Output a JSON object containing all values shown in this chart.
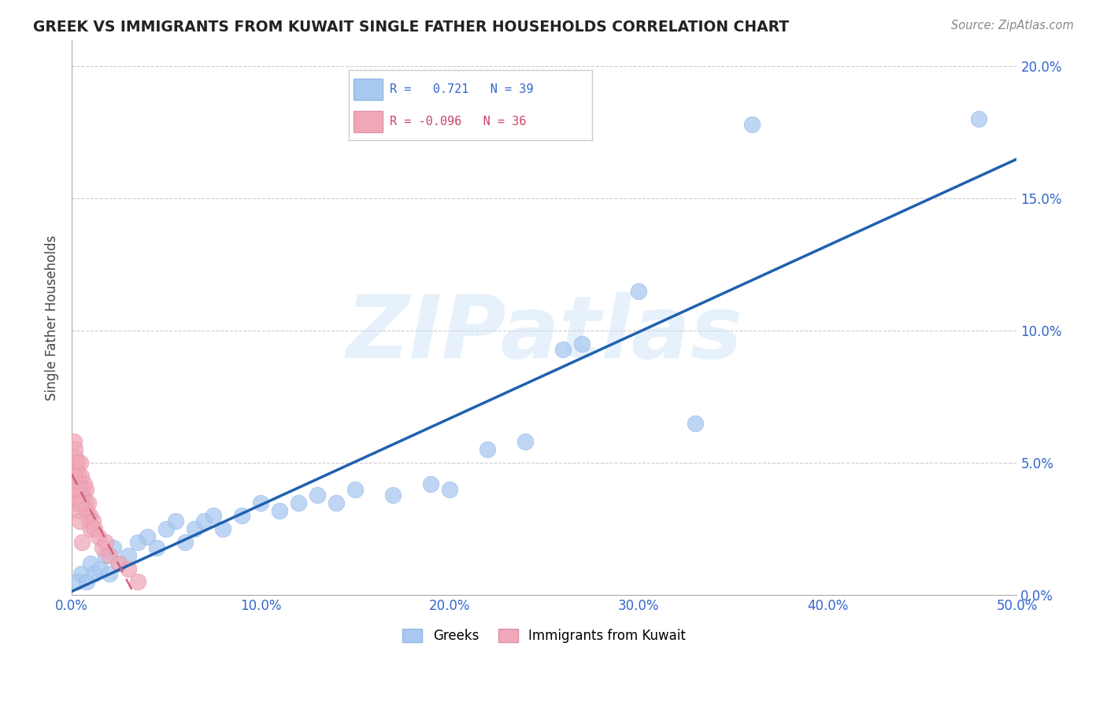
{
  "title": "GREEK VS IMMIGRANTS FROM KUWAIT SINGLE FATHER HOUSEHOLDS CORRELATION CHART",
  "source": "Source: ZipAtlas.com",
  "ylabel_label": "Single Father Households",
  "legend_label1": "Greeks",
  "legend_label2": "Immigrants from Kuwait",
  "greek_color": "#a8c8f0",
  "kuwait_color": "#f0a8b8",
  "greek_line_color": "#2060b0",
  "kuwait_line_color": "#d06080",
  "watermark_text": "ZIPatlas",
  "greek_points": [
    [
      0.3,
      0.5
    ],
    [
      0.5,
      0.8
    ],
    [
      0.8,
      0.5
    ],
    [
      1.0,
      1.2
    ],
    [
      1.2,
      0.8
    ],
    [
      1.5,
      1.0
    ],
    [
      1.8,
      1.5
    ],
    [
      2.0,
      0.8
    ],
    [
      2.2,
      1.8
    ],
    [
      2.5,
      1.2
    ],
    [
      3.0,
      1.5
    ],
    [
      3.5,
      2.0
    ],
    [
      4.0,
      2.2
    ],
    [
      4.5,
      1.8
    ],
    [
      5.0,
      2.5
    ],
    [
      5.5,
      2.8
    ],
    [
      6.0,
      2.0
    ],
    [
      6.5,
      2.5
    ],
    [
      7.0,
      2.8
    ],
    [
      7.5,
      3.0
    ],
    [
      8.0,
      2.5
    ],
    [
      9.0,
      3.0
    ],
    [
      10.0,
      3.5
    ],
    [
      11.0,
      3.2
    ],
    [
      12.0,
      3.5
    ],
    [
      13.0,
      3.8
    ],
    [
      14.0,
      3.5
    ],
    [
      15.0,
      4.0
    ],
    [
      17.0,
      3.8
    ],
    [
      19.0,
      4.2
    ],
    [
      20.0,
      4.0
    ],
    [
      22.0,
      5.5
    ],
    [
      24.0,
      5.8
    ],
    [
      26.0,
      9.3
    ],
    [
      27.0,
      9.5
    ],
    [
      30.0,
      11.5
    ],
    [
      33.0,
      6.5
    ],
    [
      36.0,
      17.8
    ],
    [
      48.0,
      18.0
    ]
  ],
  "kuwait_points": [
    [
      0.1,
      5.8
    ],
    [
      0.15,
      5.5
    ],
    [
      0.2,
      5.2
    ],
    [
      0.25,
      4.8
    ],
    [
      0.3,
      5.0
    ],
    [
      0.35,
      4.5
    ],
    [
      0.4,
      4.2
    ],
    [
      0.45,
      5.0
    ],
    [
      0.5,
      4.5
    ],
    [
      0.55,
      4.0
    ],
    [
      0.6,
      3.8
    ],
    [
      0.65,
      4.2
    ],
    [
      0.7,
      3.5
    ],
    [
      0.75,
      4.0
    ],
    [
      0.8,
      3.2
    ],
    [
      0.85,
      3.5
    ],
    [
      0.9,
      2.8
    ],
    [
      0.95,
      3.0
    ],
    [
      1.0,
      2.5
    ],
    [
      1.1,
      2.8
    ],
    [
      1.2,
      2.5
    ],
    [
      1.4,
      2.2
    ],
    [
      1.6,
      1.8
    ],
    [
      1.8,
      2.0
    ],
    [
      2.0,
      1.5
    ],
    [
      2.5,
      1.2
    ],
    [
      3.0,
      1.0
    ],
    [
      3.5,
      0.5
    ],
    [
      0.12,
      4.5
    ],
    [
      0.18,
      3.8
    ],
    [
      0.22,
      3.5
    ],
    [
      0.28,
      4.0
    ],
    [
      0.38,
      3.2
    ],
    [
      0.42,
      2.8
    ],
    [
      0.48,
      3.5
    ],
    [
      0.52,
      2.0
    ]
  ],
  "xlim": [
    0,
    50
  ],
  "ylim": [
    0,
    21
  ],
  "xticks": [
    0,
    10,
    20,
    30,
    40,
    50
  ],
  "yticks": [
    0,
    5,
    10,
    15,
    20
  ]
}
